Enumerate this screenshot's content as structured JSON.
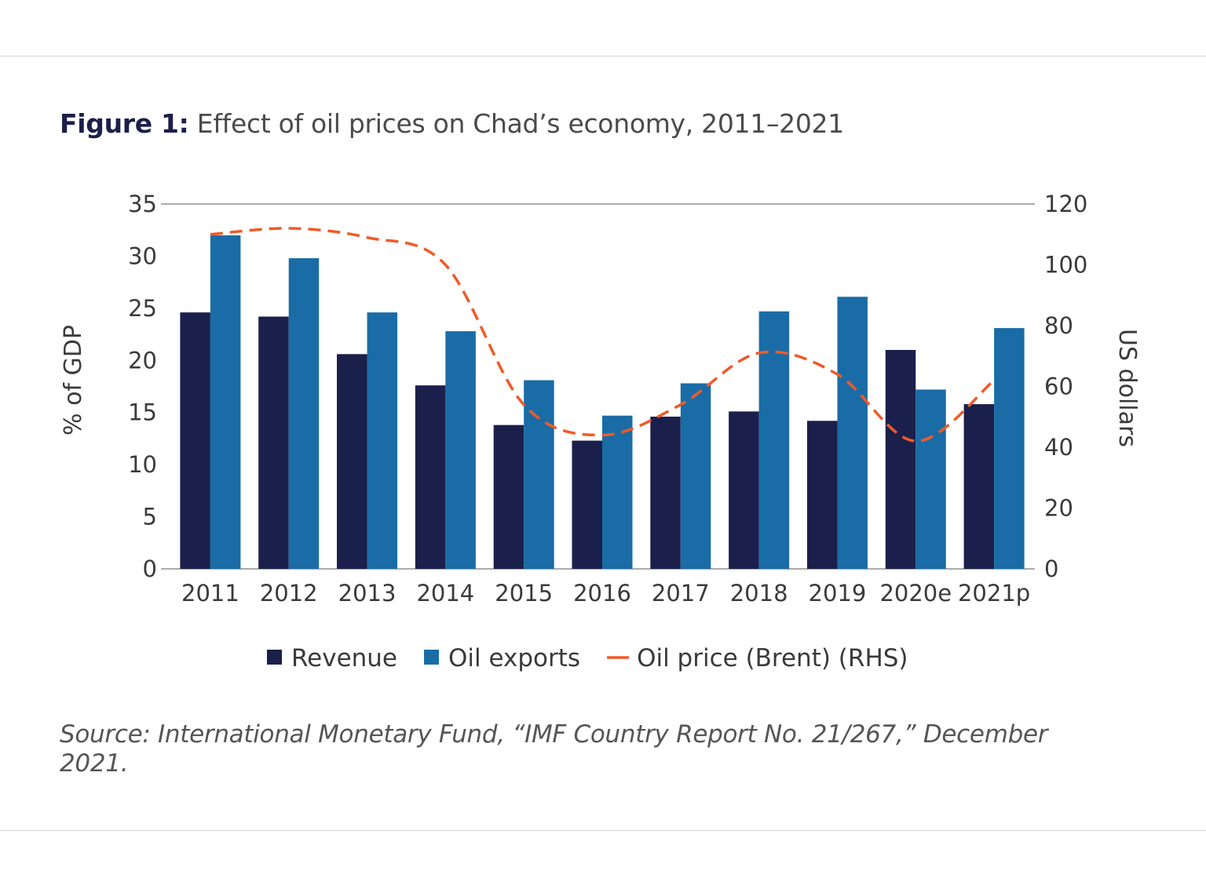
{
  "figure": {
    "label": "Figure 1:",
    "title": "Effect of oil prices on Chad’s economy, 2011–2021",
    "source": "Source: International Monetary Fund, “IMF Country Report No. 21/267,” December 2021."
  },
  "chart_data": {
    "type": "bar",
    "categories": [
      "2011",
      "2012",
      "2013",
      "2014",
      "2015",
      "2016",
      "2017",
      "2018",
      "2019",
      "2020e",
      "2021p"
    ],
    "series": [
      {
        "name": "Revenue",
        "type": "bar",
        "axis": "left",
        "color": "#1b1f4b",
        "values": [
          24.6,
          24.2,
          20.6,
          17.6,
          13.8,
          12.3,
          14.6,
          15.1,
          14.2,
          21.0,
          15.8
        ]
      },
      {
        "name": "Oil exports",
        "type": "bar",
        "axis": "left",
        "color": "#1a6ca6",
        "values": [
          32.0,
          29.8,
          24.6,
          22.8,
          18.1,
          14.7,
          17.8,
          24.7,
          26.1,
          17.2,
          23.1
        ]
      },
      {
        "name": "Oil price (Brent) (RHS)",
        "type": "line",
        "axis": "right",
        "color": "#f05a28",
        "dashed": true,
        "values": [
          110,
          112,
          109,
          100,
          54,
          44,
          54,
          71,
          64,
          42,
          62
        ]
      }
    ],
    "yleft": {
      "label": "% of GDP",
      "range": [
        0,
        35
      ],
      "ticks": [
        0,
        5,
        10,
        15,
        20,
        25,
        30,
        35
      ]
    },
    "yright": {
      "label": "US dollars",
      "range": [
        0,
        120
      ],
      "ticks": [
        0,
        20,
        40,
        60,
        80,
        100,
        120
      ]
    },
    "legend_position": "bottom"
  }
}
